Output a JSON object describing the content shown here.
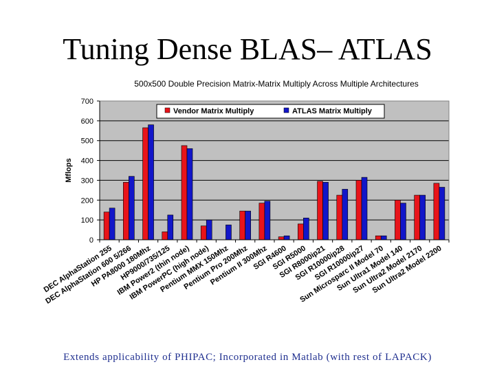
{
  "slide": {
    "title": "Tuning Dense BLAS– ATLAS",
    "footer": "Extends applicability of PHIPAC; Incorporated in Matlab (with rest of LAPACK)"
  },
  "chart_data": {
    "type": "bar",
    "title": "500x500 Double Precision Matrix-Matrix Multiply Across Multiple Architectures",
    "xlabel": "",
    "ylabel": "Mflops",
    "ylim": [
      0,
      700
    ],
    "yticks": [
      0,
      100,
      200,
      300,
      400,
      500,
      600,
      700
    ],
    "grid": true,
    "legend_position": "top",
    "categories": [
      "DEC AlphaStation 255",
      "DEC AlphaStation 600 5/266",
      "HP PA8000 180Mhz",
      "HP9000/735/125",
      "IBM Power2 (thin node)",
      "IBM PowerPC (high node)",
      "Pentium MMX 150Mhz",
      "Pentium Pro 200Mhz",
      "Pentium II 300Mhz",
      "SGI R4600",
      "SGI R5000",
      "SGI R8000ip21",
      "SGI R10000ip28",
      "SGI R10000ip27",
      "Sun Microsparc II Model 70",
      "Sun Ultra1 Model 140",
      "Sun Ultra2 Model 2170",
      "Sun Ultra2 Model 2200"
    ],
    "series": [
      {
        "name": "Vendor Matrix Multiply",
        "color": "#e8141a",
        "values": [
          140,
          290,
          565,
          40,
          475,
          70,
          0,
          145,
          185,
          15,
          80,
          295,
          225,
          300,
          20,
          200,
          225,
          285
        ]
      },
      {
        "name": "ATLAS Matrix Multiply",
        "color": "#1216c9",
        "values": [
          160,
          320,
          580,
          125,
          460,
          100,
          75,
          145,
          195,
          20,
          110,
          290,
          255,
          315,
          20,
          185,
          225,
          265
        ]
      }
    ]
  }
}
